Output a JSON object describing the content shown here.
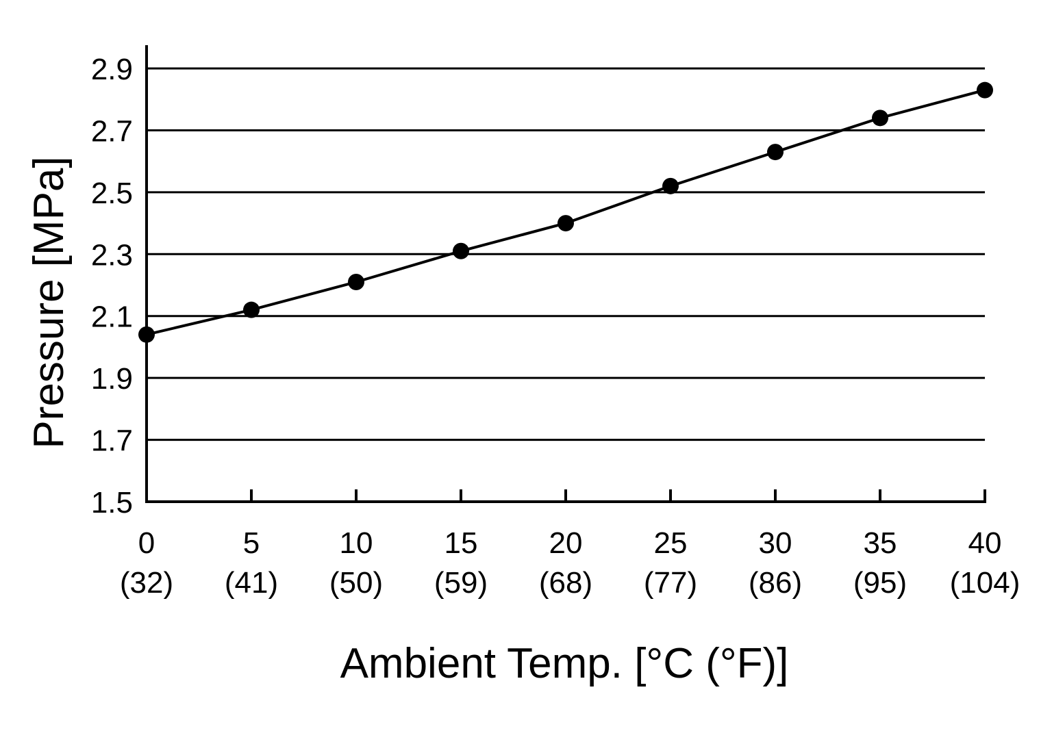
{
  "chart_data": {
    "type": "line",
    "title": "",
    "xlabel": "Ambient Temp. [°C (°F)]",
    "ylabel": "Pressure [MPa]",
    "x_ticks": [
      {
        "value": 0,
        "label": "0",
        "sublabel": "(32)"
      },
      {
        "value": 5,
        "label": "5",
        "sublabel": "(41)"
      },
      {
        "value": 10,
        "label": "10",
        "sublabel": "(50)"
      },
      {
        "value": 15,
        "label": "15",
        "sublabel": "(59)"
      },
      {
        "value": 20,
        "label": "20",
        "sublabel": "(68)"
      },
      {
        "value": 25,
        "label": "25",
        "sublabel": "(77)"
      },
      {
        "value": 30,
        "label": "30",
        "sublabel": "(86)"
      },
      {
        "value": 35,
        "label": "35",
        "sublabel": "(95)"
      },
      {
        "value": 40,
        "label": "40",
        "sublabel": "(104)"
      }
    ],
    "y_ticks": [
      {
        "value": 1.5,
        "label": "1.5"
      },
      {
        "value": 1.7,
        "label": "1.7"
      },
      {
        "value": 1.9,
        "label": "1.9"
      },
      {
        "value": 2.1,
        "label": "2.1"
      },
      {
        "value": 2.3,
        "label": "2.3"
      },
      {
        "value": 2.5,
        "label": "2.5"
      },
      {
        "value": 2.7,
        "label": "2.7"
      },
      {
        "value": 2.9,
        "label": "2.9"
      }
    ],
    "xlim": [
      0,
      40
    ],
    "ylim": [
      1.5,
      2.9
    ],
    "grid": "horizontal",
    "series": [
      {
        "x": [
          0,
          5,
          10,
          15,
          20,
          25,
          30,
          35,
          40
        ],
        "y": [
          2.04,
          2.12,
          2.21,
          2.31,
          2.4,
          2.52,
          2.63,
          2.74,
          2.83
        ]
      }
    ],
    "colors": {
      "line": "#000000",
      "marker": "#000000",
      "grid": "#000000",
      "background": "#ffffff"
    }
  }
}
